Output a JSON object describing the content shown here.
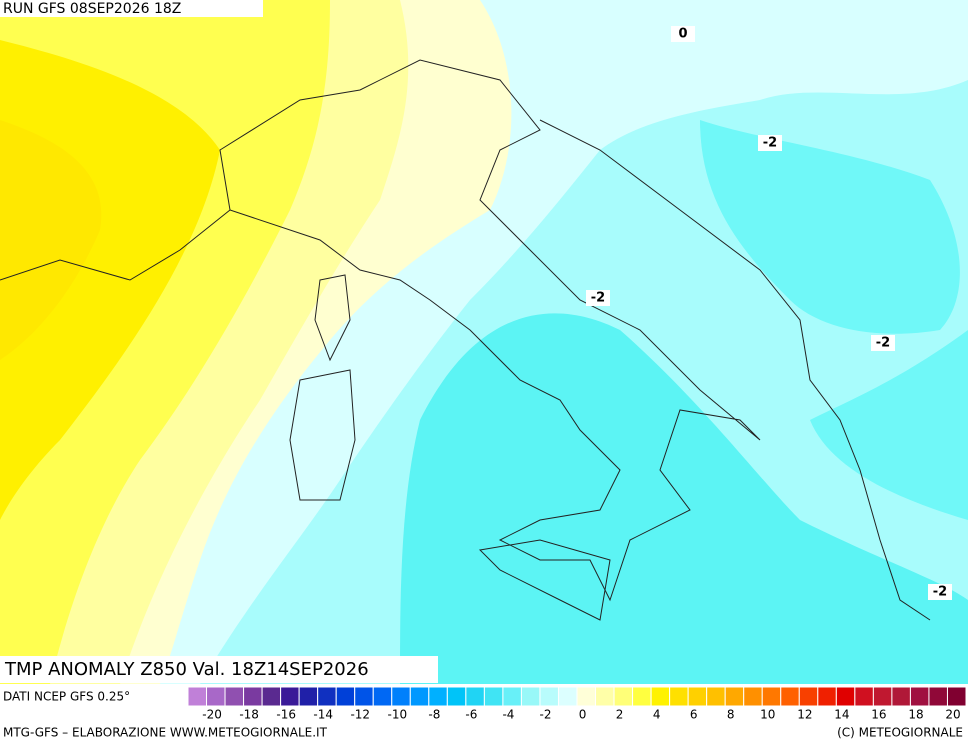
{
  "header": {
    "run": "RUN GFS 08SEP2026 18Z",
    "title": "TMP ANOMALY Z850 Val. 18Z14SEP2026",
    "source": "DATI NCEP GFS 0.25°"
  },
  "contour_labels": [
    "0",
    "-2",
    "-2",
    "-2",
    "-2"
  ],
  "colorbar": {
    "labels": [
      "-20",
      "-18",
      "-16",
      "-14",
      "-12",
      "-10",
      "-8",
      "-6",
      "-4",
      "-2",
      "0",
      "2",
      "4",
      "6",
      "8",
      "10",
      "12",
      "14",
      "16",
      "18",
      "20"
    ],
    "colors": [
      "#c080d8",
      "#a868c8",
      "#9050b0",
      "#7a3aa0",
      "#5a2a90",
      "#3a1a98",
      "#2020a8",
      "#1030c0",
      "#0040d8",
      "#0054e8",
      "#0068f4",
      "#0080fc",
      "#0098ff",
      "#00b0ff",
      "#00c4f8",
      "#20d4f4",
      "#40e4f4",
      "#68f0f8",
      "#98f8f8",
      "#b8fcfc",
      "#dcffff",
      "#ffffd8",
      "#ffffa8",
      "#ffff78",
      "#ffff40",
      "#fff200",
      "#ffe000",
      "#ffd000",
      "#ffc000",
      "#ffa800",
      "#ff9000",
      "#ff7800",
      "#ff6000",
      "#f84000",
      "#f02000",
      "#e00000",
      "#d01020",
      "#c01830",
      "#b01838",
      "#a01040",
      "#900838",
      "#800030"
    ]
  },
  "footer": {
    "left": "MTG-GFS – ELABORAZIONE WWW.METEOGIORNALE.IT",
    "right": "(C) METEOGIORNALE"
  }
}
